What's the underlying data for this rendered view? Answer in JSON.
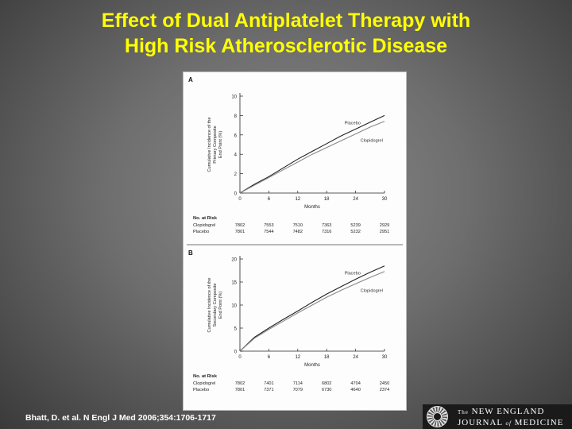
{
  "slide": {
    "title_line1": "Effect of Dual Antiplatelet Therapy with",
    "title_line2": "High Risk Atherosclerotic Disease",
    "citation": "Bhatt, D. et al. N Engl J Med 2006;354:1706-1717",
    "logo": {
      "the": "The",
      "line1": "NEW ENGLAND",
      "line2a": "JOURNAL",
      "of": "of",
      "line2b": "MEDICINE"
    },
    "title_color": "#ffff00"
  },
  "chart_data": [
    {
      "type": "line",
      "panel_label": "A",
      "ylabel_lines": [
        "Cumulative Incidence of the",
        "Primary Composite",
        "End Point (%)"
      ],
      "xlabel": "Months",
      "xlim": [
        0,
        30
      ],
      "ylim": [
        0,
        10
      ],
      "x_ticks": [
        0,
        6,
        12,
        18,
        24,
        30
      ],
      "y_ticks": [
        0,
        2,
        4,
        6,
        8,
        10
      ],
      "y_tick_labels": [
        "0",
        "2",
        "4",
        "6",
        "8",
        "10"
      ],
      "series": [
        {
          "name": "Placebo",
          "color": "#222222",
          "x": [
            0,
            3,
            6,
            9,
            12,
            15,
            18,
            21,
            24,
            27,
            30
          ],
          "y": [
            0,
            0.9,
            1.7,
            2.6,
            3.5,
            4.3,
            5.1,
            5.9,
            6.6,
            7.3,
            8.0
          ]
        },
        {
          "name": "Clopidogrel",
          "color": "#888888",
          "x": [
            0,
            3,
            6,
            9,
            12,
            15,
            18,
            21,
            24,
            27,
            30
          ],
          "y": [
            0,
            0.8,
            1.6,
            2.4,
            3.2,
            4.0,
            4.7,
            5.4,
            6.1,
            6.8,
            7.4
          ]
        }
      ],
      "at_risk": {
        "header": "No. at Risk",
        "rows": [
          {
            "label": "Clopidogrel",
            "values": [
              "7802",
              "7553",
              "7510",
              "7363",
              "5239",
              "2929"
            ]
          },
          {
            "label": "Placebo",
            "values": [
              "7801",
              "7544",
              "7482",
              "7316",
              "5232",
              "2951"
            ]
          }
        ]
      }
    },
    {
      "type": "line",
      "panel_label": "B",
      "ylabel_lines": [
        "Cumulative Incidence of the",
        "Secondary Composite",
        "End Point (%)"
      ],
      "xlabel": "Months",
      "xlim": [
        0,
        30
      ],
      "ylim": [
        0,
        20
      ],
      "x_ticks": [
        0,
        6,
        12,
        18,
        24,
        30
      ],
      "y_ticks": [
        0,
        5,
        10,
        15,
        20
      ],
      "y_tick_labels": [
        "0",
        "5",
        "10",
        "15",
        "20"
      ],
      "series": [
        {
          "name": "Placebo",
          "color": "#222222",
          "x": [
            0,
            3,
            6,
            9,
            12,
            15,
            18,
            21,
            24,
            27,
            30
          ],
          "y": [
            0,
            3.0,
            5.0,
            6.9,
            8.7,
            10.6,
            12.4,
            14.0,
            15.6,
            17.1,
            18.5
          ]
        },
        {
          "name": "Clopidogrel",
          "color": "#888888",
          "x": [
            0,
            3,
            6,
            9,
            12,
            15,
            18,
            21,
            24,
            27,
            30
          ],
          "y": [
            0,
            2.8,
            4.7,
            6.5,
            8.3,
            10.0,
            11.7,
            13.2,
            14.6,
            16.0,
            17.3
          ]
        }
      ],
      "at_risk": {
        "header": "No. at Risk",
        "rows": [
          {
            "label": "Clopidogrel",
            "values": [
              "7802",
              "7401",
              "7114",
              "6802",
              "4704",
              "2450"
            ]
          },
          {
            "label": "Placebo",
            "values": [
              "7801",
              "7371",
              "7079",
              "6730",
              "4640",
              "2374"
            ]
          }
        ]
      }
    }
  ]
}
